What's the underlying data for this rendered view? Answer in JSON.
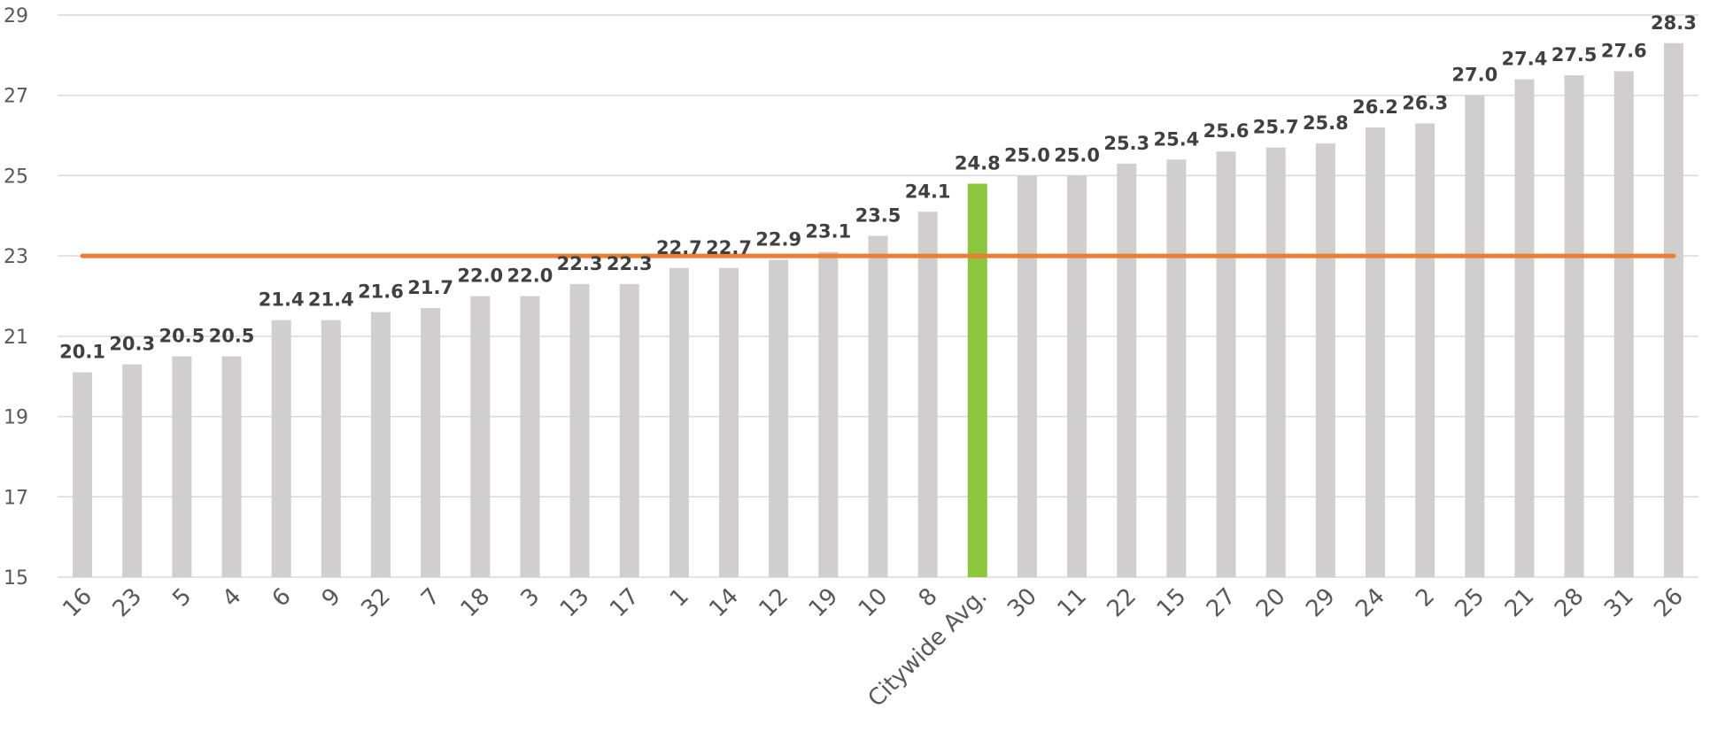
{
  "chart_data": {
    "type": "bar",
    "categories": [
      "16",
      "23",
      "5",
      "4",
      "6",
      "9",
      "32",
      "7",
      "18",
      "3",
      "13",
      "17",
      "1",
      "14",
      "12",
      "19",
      "10",
      "8",
      "Citywide Avg.",
      "30",
      "11",
      "22",
      "15",
      "27",
      "20",
      "29",
      "24",
      "2",
      "25",
      "21",
      "28",
      "31",
      "26"
    ],
    "values": [
      20.1,
      20.3,
      20.5,
      20.5,
      21.4,
      21.4,
      21.6,
      21.7,
      22.0,
      22.0,
      22.3,
      22.3,
      22.7,
      22.7,
      22.9,
      23.1,
      23.5,
      24.1,
      24.8,
      25.0,
      25.0,
      25.3,
      25.4,
      25.6,
      25.7,
      25.8,
      26.2,
      26.3,
      27.0,
      27.4,
      27.5,
      27.6,
      28.3
    ],
    "value_labels": [
      "20.1",
      "20.3",
      "20.5",
      "20.5",
      "21.4",
      "21.4",
      "21.6",
      "21.7",
      "22.0",
      "22.0",
      "22.3",
      "22.3",
      "22.7",
      "22.7",
      "22.9",
      "23.1",
      "23.5",
      "24.1",
      "24.8",
      "25.0",
      "25.0",
      "25.3",
      "25.4",
      "25.6",
      "25.7",
      "25.8",
      "26.2",
      "26.3",
      "27.0",
      "27.4",
      "27.5",
      "27.6",
      "28.3"
    ],
    "highlight_category": "Citywide Avg.",
    "reference_line": {
      "value": 23
    },
    "ylim": [
      15,
      29
    ],
    "yticks": [
      "15",
      "17",
      "19",
      "21",
      "23",
      "25",
      "27",
      "29"
    ],
    "grid": true,
    "colors": {
      "bar": "#d0cece",
      "highlight": "#8cc63f",
      "reference_line": "#ed7d31",
      "grid": "#d9d9d9"
    },
    "title": "",
    "xlabel": "",
    "ylabel": ""
  }
}
